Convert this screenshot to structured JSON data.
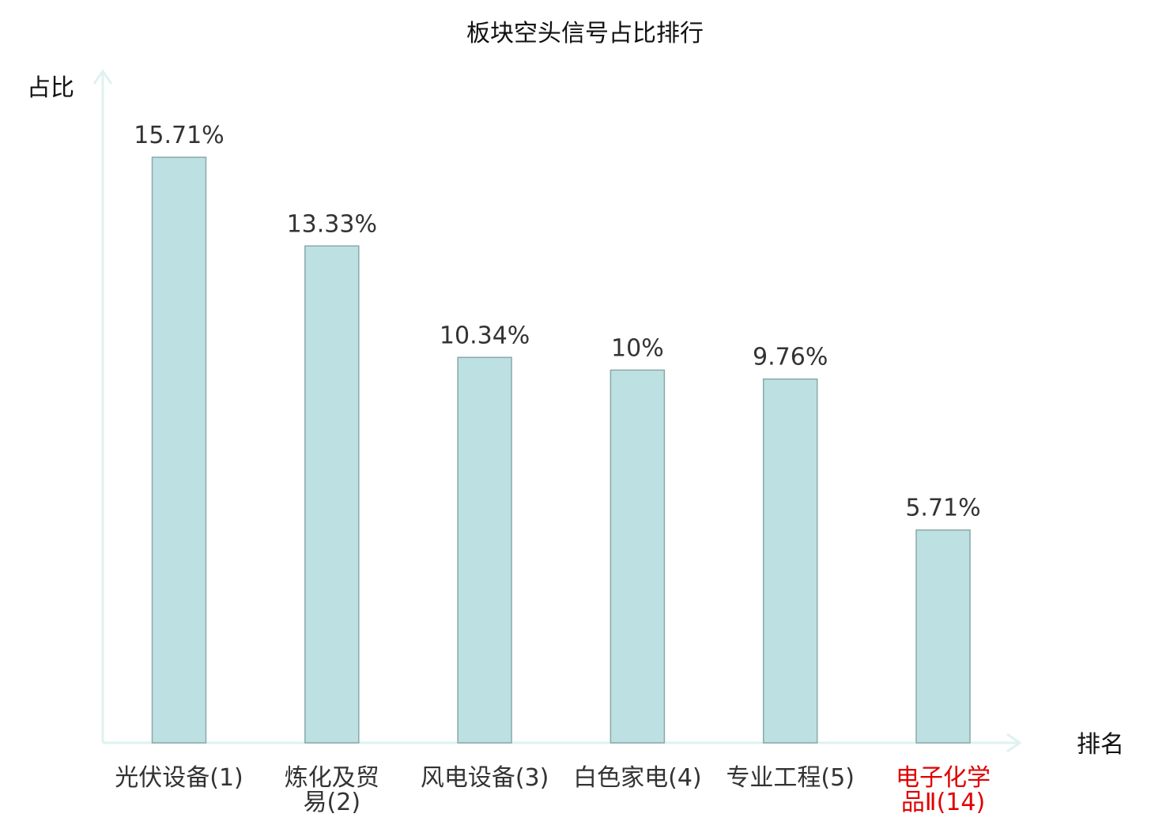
{
  "chart_data": {
    "type": "bar",
    "title": "板块空头信号占比排行",
    "ylabel": "占比",
    "xlabel": "排名",
    "categories": [
      [
        "光伏设备(1)"
      ],
      [
        "炼化及贸",
        "易(2)"
      ],
      [
        "风电设备(3)"
      ],
      [
        "白色家电(4)"
      ],
      [
        "专业工程(5)"
      ],
      [
        "电子化学",
        "品Ⅱ(14)"
      ]
    ],
    "values": [
      15.71,
      13.33,
      10.34,
      10,
      9.76,
      5.71
    ],
    "value_labels": [
      "15.71%",
      "13.33%",
      "10.34%",
      "10%",
      "9.76%",
      "5.71%"
    ],
    "highlight_index": 5,
    "ylim": [
      0,
      17.5
    ],
    "grid": false,
    "legend": "none",
    "colors": {
      "bar_fill": "#bde0e2",
      "bar_stroke": "#8aa8aa",
      "axis": "#dff2f0",
      "text": "#333333",
      "highlight_text": "#e00000",
      "title_text": "#111111"
    }
  }
}
